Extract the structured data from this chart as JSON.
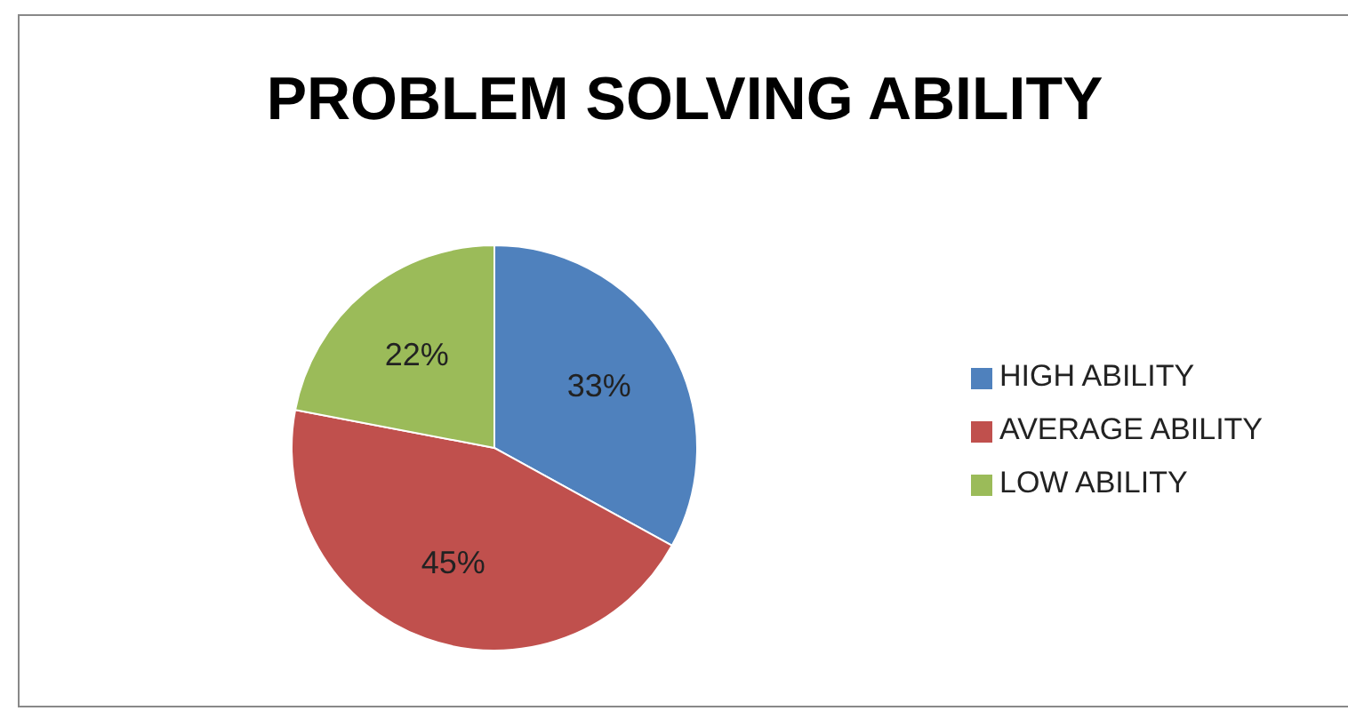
{
  "chart_data": {
    "type": "pie",
    "title": "PROBLEM SOLVING ABILITY",
    "categories": [
      "HIGH ABILITY",
      "AVERAGE ABILITY",
      "LOW ABILITY"
    ],
    "values": [
      33,
      45,
      22
    ],
    "colors": [
      "#4f81bd",
      "#c0504d",
      "#9bbb59"
    ],
    "value_labels": [
      "33%",
      "45%",
      "22%"
    ],
    "legend": "right"
  }
}
